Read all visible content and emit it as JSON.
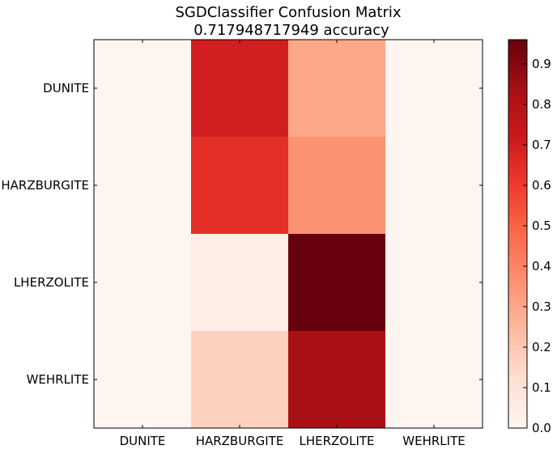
{
  "chart_data": {
    "type": "heatmap",
    "title": "SGDClassifier Confusion Matrix",
    "subtitle": "0.717948717949 accuracy",
    "xlabel": "",
    "ylabel": "",
    "row_labels": [
      "DUNITE",
      "HARZBURGITE",
      "LHERZOLITE",
      "WEHRLITE"
    ],
    "col_labels": [
      "DUNITE",
      "HARZBURGITE",
      "LHERZOLITE",
      "WEHRLITE"
    ],
    "values": [
      [
        0.0,
        0.7,
        0.3,
        0.0
      ],
      [
        0.0,
        0.64,
        0.36,
        0.0
      ],
      [
        0.0,
        0.04,
        0.96,
        0.0
      ],
      [
        0.0,
        0.17,
        0.83,
        0.0
      ]
    ],
    "colormap": "Reds",
    "colorbar": {
      "min": 0.0,
      "max": 0.96,
      "ticks": [
        "0.0",
        "0.1",
        "0.2",
        "0.3",
        "0.4",
        "0.5",
        "0.6",
        "0.7",
        "0.8",
        "0.9"
      ]
    },
    "grid": false
  }
}
